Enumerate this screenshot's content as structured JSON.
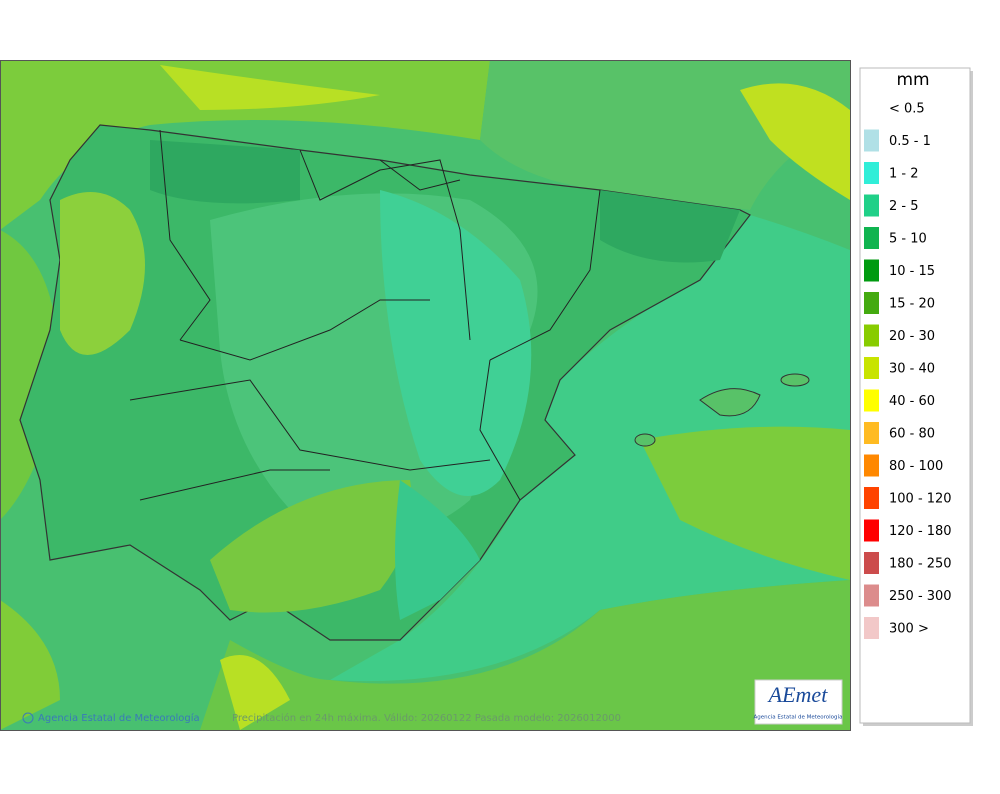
{
  "legend": {
    "unit": "mm",
    "items": [
      {
        "label": "< 0.5",
        "color": "#ffffff"
      },
      {
        "label": "0.5 - 1",
        "color": "#b0e0e6"
      },
      {
        "label": "1 - 2",
        "color": "#30eed8"
      },
      {
        "label": "2 - 5",
        "color": "#20d088"
      },
      {
        "label": "5 - 10",
        "color": "#10b450"
      },
      {
        "label": "10 - 15",
        "color": "#009a10"
      },
      {
        "label": "15 - 20",
        "color": "#44aa10"
      },
      {
        "label": "20 - 30",
        "color": "#88cc00"
      },
      {
        "label": "30 - 40",
        "color": "#c8e400"
      },
      {
        "label": "40 - 60",
        "color": "#ffff00"
      },
      {
        "label": "60 - 80",
        "color": "#ffbb22"
      },
      {
        "label": "80 - 100",
        "color": "#ff8800"
      },
      {
        "label": "100 - 120",
        "color": "#ff4400"
      },
      {
        "label": "120 - 180",
        "color": "#ff0000"
      },
      {
        "label": "180 - 250",
        "color": "#cc4c4c"
      },
      {
        "label": "250 - 300",
        "color": "#dc8c8c"
      },
      {
        "label": "300 >",
        "color": "#f2c8c8"
      }
    ]
  },
  "footer": {
    "credit": "Agencia Estatal de Meteorología",
    "caption": "Precipitación en 24h máxima. Válido: 20260122 Pasada modelo: 2026012000"
  },
  "logo": {
    "text": "AEmet",
    "subtitle": "Agencia Estatal de Meteorología"
  }
}
